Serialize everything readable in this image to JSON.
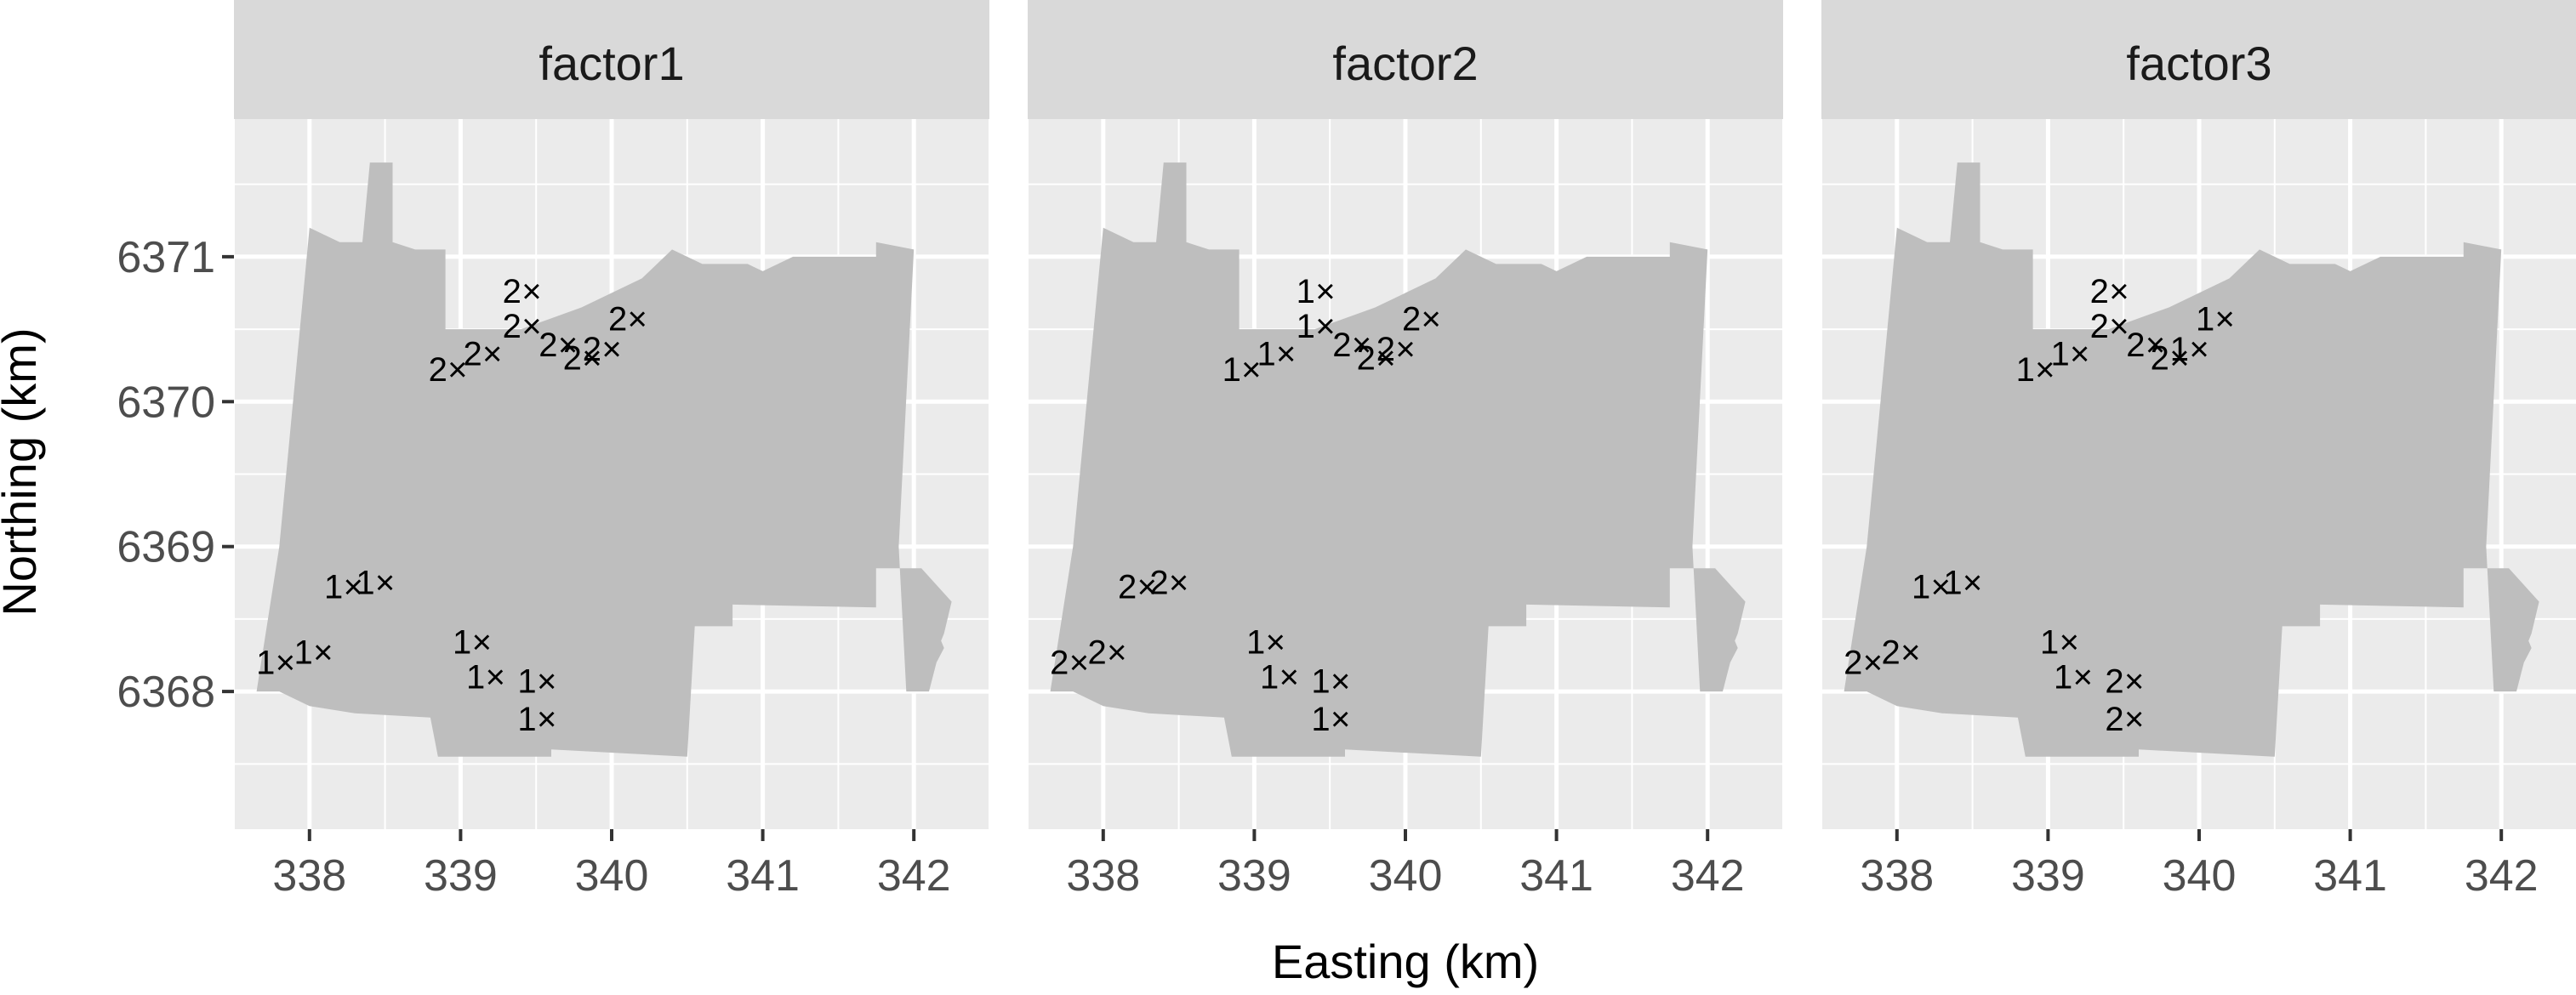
{
  "chart_data": {
    "type": "scatter",
    "xlabel": "Easting (km)",
    "ylabel": "Northing (km)",
    "xlim": [
      337.5,
      342.5
    ],
    "ylim": [
      6367.05,
      6371.95
    ],
    "x_ticks": [
      338,
      339,
      340,
      341,
      342
    ],
    "y_ticks": [
      6368,
      6369,
      6370,
      6371
    ],
    "grid": true,
    "marker": "×",
    "region_boundary": [
      [
        337.65,
        6368.0
      ],
      [
        337.8,
        6368.0
      ],
      [
        338.0,
        6367.9
      ],
      [
        338.3,
        6367.85
      ],
      [
        338.8,
        6367.82
      ],
      [
        338.85,
        6367.55
      ],
      [
        339.6,
        6367.55
      ],
      [
        339.6,
        6367.6
      ],
      [
        340.5,
        6367.55
      ],
      [
        340.55,
        6368.45
      ],
      [
        340.8,
        6368.45
      ],
      [
        340.8,
        6368.6
      ],
      [
        341.75,
        6368.58
      ],
      [
        341.75,
        6368.85
      ],
      [
        342.05,
        6368.85
      ],
      [
        342.25,
        6368.62
      ],
      [
        342.2,
        6368.4
      ],
      [
        342.18,
        6368.35
      ],
      [
        342.2,
        6368.3
      ],
      [
        342.15,
        6368.2
      ],
      [
        342.1,
        6368.0
      ],
      [
        341.95,
        6368.0
      ],
      [
        341.9,
        6369.0
      ],
      [
        342.0,
        6371.05
      ],
      [
        341.75,
        6371.1
      ],
      [
        341.75,
        6371.0
      ],
      [
        341.2,
        6371.0
      ],
      [
        341.0,
        6370.9
      ],
      [
        340.9,
        6370.95
      ],
      [
        340.6,
        6370.95
      ],
      [
        340.4,
        6371.05
      ],
      [
        340.2,
        6370.85
      ],
      [
        339.8,
        6370.65
      ],
      [
        339.4,
        6370.5
      ],
      [
        338.9,
        6370.5
      ],
      [
        338.9,
        6371.05
      ],
      [
        338.7,
        6371.05
      ],
      [
        338.55,
        6371.1
      ],
      [
        338.55,
        6371.65
      ],
      [
        338.4,
        6371.65
      ],
      [
        338.35,
        6371.1
      ],
      [
        338.2,
        6371.1
      ],
      [
        338.0,
        6371.2
      ],
      [
        337.8,
        6369.0
      ],
      [
        337.65,
        6368.0
      ]
    ],
    "points": [
      {
        "x": 339.47,
        "y": 6370.77,
        "factor1": "2",
        "factor2": "1",
        "factor3": "2"
      },
      {
        "x": 339.47,
        "y": 6370.53,
        "factor1": "2",
        "factor2": "1",
        "factor3": "2"
      },
      {
        "x": 340.17,
        "y": 6370.58,
        "factor1": "2",
        "factor2": "2",
        "factor3": "1"
      },
      {
        "x": 339.21,
        "y": 6370.34,
        "factor1": "2",
        "factor2": "1",
        "factor3": "1"
      },
      {
        "x": 338.98,
        "y": 6370.23,
        "factor1": "2",
        "factor2": "1",
        "factor3": "1"
      },
      {
        "x": 339.71,
        "y": 6370.4,
        "factor1": "2",
        "factor2": "2",
        "factor3": "2"
      },
      {
        "x": 340.0,
        "y": 6370.37,
        "factor1": "2",
        "factor2": "2",
        "factor3": "1"
      },
      {
        "x": 339.87,
        "y": 6370.31,
        "factor1": "2",
        "factor2": "2",
        "factor3": "2"
      },
      {
        "x": 338.29,
        "y": 6368.73,
        "factor1": "1",
        "factor2": "2",
        "factor3": "1"
      },
      {
        "x": 338.5,
        "y": 6368.76,
        "factor1": "1",
        "factor2": "2",
        "factor3": "1"
      },
      {
        "x": 338.09,
        "y": 6368.28,
        "factor1": "1",
        "factor2": "2",
        "factor3": "2"
      },
      {
        "x": 337.84,
        "y": 6368.21,
        "factor1": "1",
        "factor2": "2",
        "factor3": "2"
      },
      {
        "x": 339.14,
        "y": 6368.35,
        "factor1": "1",
        "factor2": "1",
        "factor3": "1"
      },
      {
        "x": 339.23,
        "y": 6368.11,
        "factor1": "1",
        "factor2": "1",
        "factor3": "1"
      },
      {
        "x": 339.57,
        "y": 6368.08,
        "factor1": "1",
        "factor2": "1",
        "factor3": "2"
      },
      {
        "x": 339.57,
        "y": 6367.82,
        "factor1": "1",
        "factor2": "1",
        "factor3": "2"
      }
    ],
    "facets": [
      {
        "key": "factor1",
        "label": "factor1"
      },
      {
        "key": "factor2",
        "label": "factor2"
      },
      {
        "key": "factor3",
        "label": "factor3"
      }
    ],
    "colors": {
      "panel_background": "#ebebeb",
      "grid_major": "#ffffff",
      "strip_background": "#d9d9d9",
      "region_fill": "#bebebe",
      "marker": "#000000"
    }
  }
}
